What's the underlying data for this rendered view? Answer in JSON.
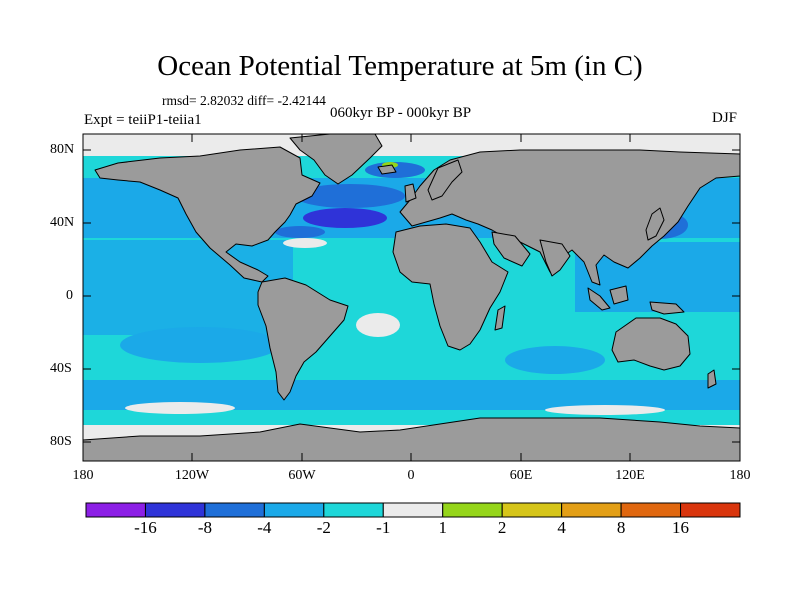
{
  "title": "Ocean Potential Temperature at 5m (in C)",
  "stats": "rmsd= 2.82032 diff= -2.42144",
  "experiment": "Expt = teiiP1-teiia1",
  "period": "060kyr BP - 000kyr BP",
  "season": "DJF",
  "map": {
    "lat_ticks": [
      "80N",
      "40N",
      "0",
      "40S",
      "80S"
    ],
    "lon_ticks": [
      "180",
      "120W",
      "60W",
      "0",
      "60E",
      "120E",
      "180"
    ],
    "land_color": "#9b9b9b",
    "coastline_color": "#000000"
  },
  "colorbar": {
    "labels": [
      "-16",
      "-8",
      "-4",
      "-2",
      "-1",
      "1",
      "2",
      "4",
      "8",
      "16"
    ],
    "colors": [
      "#8c1fe6",
      "#2f33d8",
      "#1f6fd8",
      "#1ba9e8",
      "#1ed7d9",
      "#ebebeb",
      "#95d51a",
      "#d6c51a",
      "#e39f16",
      "#e0670f",
      "#d9350d"
    ]
  }
}
